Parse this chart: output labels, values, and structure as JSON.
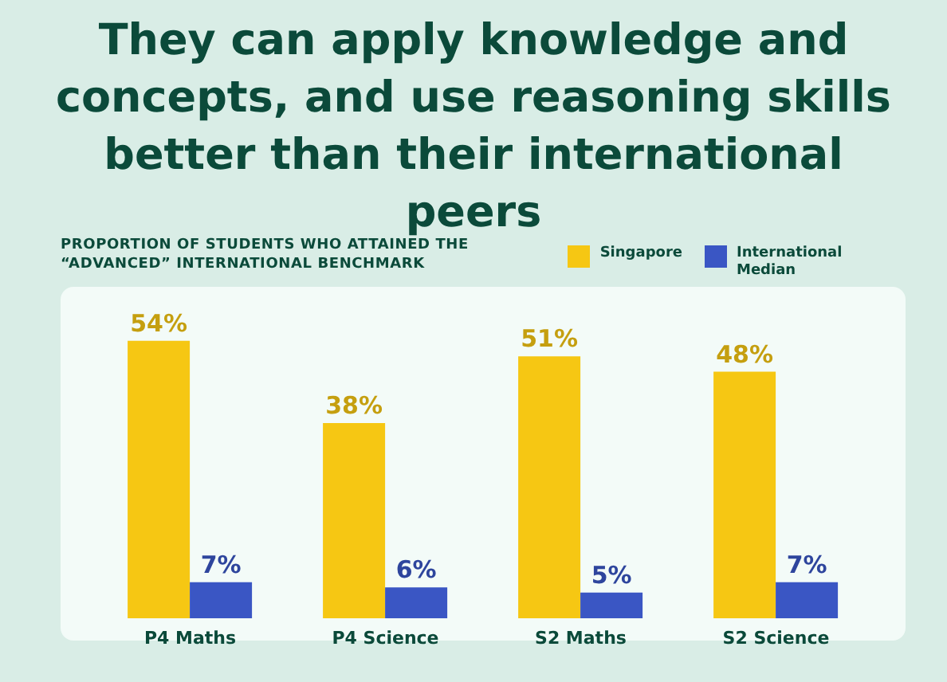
{
  "chart_data": {
    "type": "bar",
    "title": "They can apply knowledge and concepts, and use reasoning skills better than their international peers",
    "subtitle": "PROPORTION OF STUDENTS WHO ATTAINED THE “ADVANCED” INTERNATIONAL BENCHMARK",
    "categories": [
      "P4 Maths",
      "P4 Science",
      "S2 Maths",
      "S2 Science"
    ],
    "series": [
      {
        "name": "Singapore",
        "color": "#f6c713",
        "values": [
          54,
          38,
          51,
          48
        ],
        "value_labels": [
          "54%",
          "38%",
          "51%",
          "48%"
        ]
      },
      {
        "name": "International Median",
        "color": "#3a56c4",
        "values": [
          7,
          6,
          5,
          7
        ],
        "value_labels": [
          "7%",
          "6%",
          "5%",
          "7%"
        ]
      }
    ],
    "legend": "top right",
    "grid": false
  }
}
